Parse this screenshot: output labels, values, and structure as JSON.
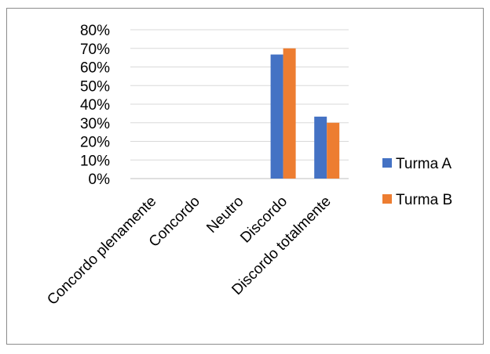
{
  "chart_data": {
    "type": "bar",
    "categories": [
      "Concordo plenamente",
      "Concordo",
      "Neutro",
      "Discordo",
      "Discordo totalmente"
    ],
    "series": [
      {
        "name": "Turma A",
        "color": "#4472C4",
        "values": [
          0,
          0,
          0,
          0.667,
          0.333
        ]
      },
      {
        "name": "Turma B",
        "color": "#ED7D31",
        "values": [
          0,
          0,
          0,
          0.7,
          0.3
        ]
      }
    ],
    "ylim": [
      0,
      0.8
    ],
    "yticks": [
      "0%",
      "10%",
      "20%",
      "30%",
      "40%",
      "50%",
      "60%",
      "70%",
      "80%"
    ],
    "ytick_values": [
      0,
      0.1,
      0.2,
      0.3,
      0.4,
      0.5,
      0.6,
      0.7,
      0.8
    ],
    "grid": true,
    "legend_position": "right",
    "title": "",
    "xlabel": "",
    "ylabel": ""
  }
}
